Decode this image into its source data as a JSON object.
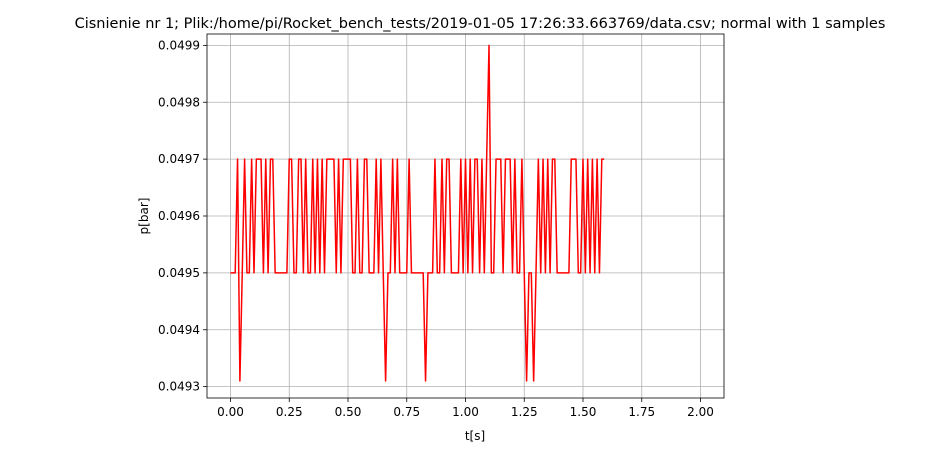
{
  "chart_data": {
    "type": "line",
    "title": "Cisnienie nr 1; Plik:/home/pi/Rocket_bench_tests/2019-01-05 17:26:33.663769/data.csv; normal with 1 samples",
    "xlabel": "t[s]",
    "ylabel": "p[bar]",
    "xlim": [
      -0.1,
      2.1
    ],
    "ylim": [
      0.04928,
      0.04992
    ],
    "grid": true,
    "x_ticks": [
      0.0,
      0.25,
      0.5,
      0.75,
      1.0,
      1.25,
      1.5,
      1.75,
      2.0
    ],
    "x_tick_labels": [
      "0.00",
      "0.25",
      "0.50",
      "0.75",
      "1.00",
      "1.25",
      "1.50",
      "1.75",
      "2.00"
    ],
    "y_ticks": [
      0.0493,
      0.0494,
      0.0495,
      0.0496,
      0.0497,
      0.0498,
      0.0499
    ],
    "y_tick_labels": [
      "0.0493",
      "0.0494",
      "0.0495",
      "0.0496",
      "0.0497",
      "0.0498",
      "0.0499"
    ],
    "series": [
      {
        "name": "p",
        "color": "#ff0000",
        "levels": {
          "H": 0.0497,
          "L": 0.0495,
          "D": 0.04931,
          "P": 0.0499
        },
        "x_start": 0.0,
        "x_step": 0.01,
        "pattern": "LLLHDLHLLHLHHHLHLHHLLLLLLHHLLHHLHLLHLHLHLHHHHLHLHHHHLLHLLHHLLLHLHLDLLHLHLLLLHLLLLLLDLLLHLLHLHHLLLLHLHLHLHHLHLHPLLHHHLHHHLHLLHLDLLDLHLHLHLHHLLLLLLHHHLLHLHLHLHLHH"
      }
    ]
  }
}
